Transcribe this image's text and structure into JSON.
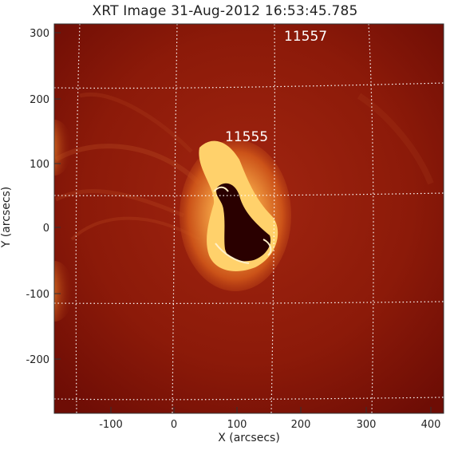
{
  "image": {
    "title": "XRT Image 31-Aug-2012 16:53:45.785",
    "x_axis_label": "X (arcsecs)",
    "y_axis_label": "Y (arcsecs)",
    "x_ticks": [
      "-100",
      "0",
      "100",
      "200",
      "300",
      "400"
    ],
    "y_ticks": [
      "300",
      "200",
      "100",
      "0",
      "-100",
      "-200"
    ],
    "regions": [
      {
        "label": "11555"
      },
      {
        "label": "11557"
      }
    ],
    "colors": {
      "background": "#8f1c0b",
      "dark_red": "#6e0d05",
      "bright_yellow": "#ffd97a",
      "white": "#ffffff",
      "grid": "#ffffff"
    }
  }
}
